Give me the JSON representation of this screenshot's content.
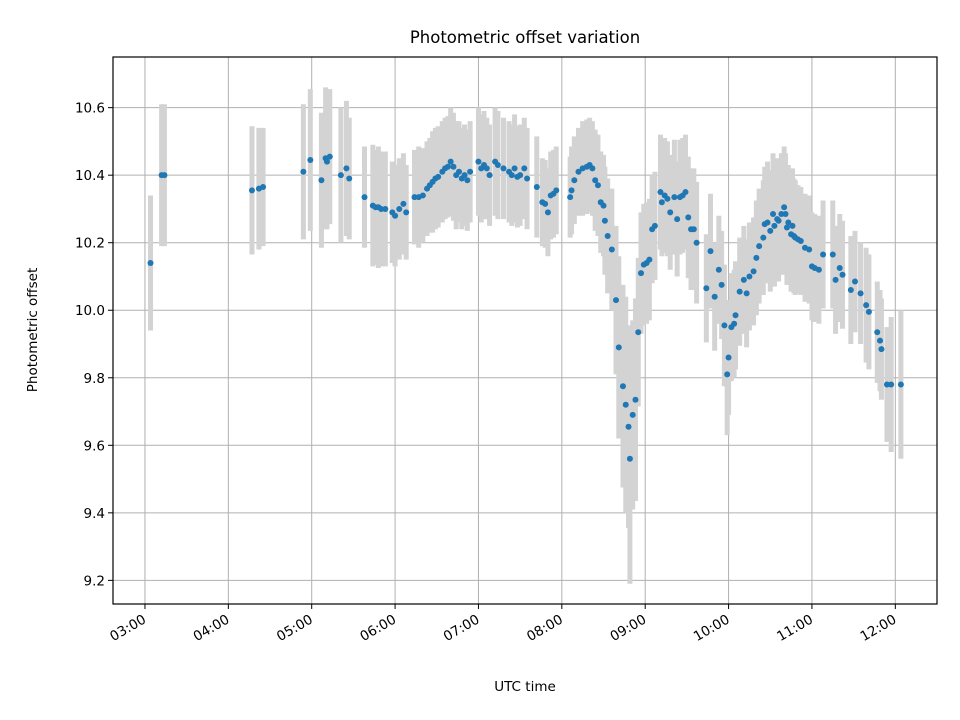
{
  "chart_data": {
    "type": "scatter",
    "title": "Photometric offset variation",
    "xlabel": "UTC time",
    "ylabel": "Photometric offset",
    "x_ticks": [
      "03:00",
      "04:00",
      "05:00",
      "06:00",
      "07:00",
      "08:00",
      "09:00",
      "10:00",
      "11:00",
      "12:00"
    ],
    "y_ticks": [
      "9.2",
      "9.4",
      "9.6",
      "9.8",
      "10.0",
      "10.2",
      "10.4",
      "10.6"
    ],
    "x_range": [
      "02:37",
      "12:30"
    ],
    "ylim": [
      9.13,
      10.75
    ],
    "grid": true,
    "colors": {
      "points": "#1f77b4",
      "error_bars": "#d3d3d3",
      "grid": "#b0b0b0",
      "frame": "#000000"
    },
    "series": [
      {
        "points": [
          [
            "03:04",
            10.14,
            0.2
          ],
          [
            "03:12",
            10.4,
            0.21
          ],
          [
            "03:14",
            10.4,
            0.21
          ],
          [
            "04:17",
            10.355,
            0.19
          ],
          [
            "04:22",
            10.36,
            0.18
          ],
          [
            "04:25",
            10.365,
            0.175
          ],
          [
            "04:54",
            10.41,
            0.2
          ],
          [
            "04:59",
            10.445,
            0.21
          ],
          [
            "05:07",
            10.385,
            0.2
          ],
          [
            "05:10",
            10.45,
            0.21
          ],
          [
            "05:11",
            10.44,
            0.2
          ],
          [
            "05:13",
            10.455,
            0.2
          ],
          [
            "05:21",
            10.4,
            0.2
          ],
          [
            "05:25",
            10.42,
            0.2
          ],
          [
            "05:27",
            10.39,
            0.18
          ],
          [
            "05:38",
            10.335,
            0.15
          ],
          [
            "05:44",
            10.31,
            0.18
          ],
          [
            "05:46",
            10.305,
            0.17
          ],
          [
            "05:48",
            10.305,
            0.18
          ],
          [
            "05:50",
            10.3,
            0.17
          ],
          [
            "05:53",
            10.3,
            0.17
          ],
          [
            "05:58",
            10.29,
            0.15
          ],
          [
            "06:00",
            10.28,
            0.15
          ],
          [
            "06:03",
            10.3,
            0.15
          ],
          [
            "06:06",
            10.315,
            0.15
          ],
          [
            "06:08",
            10.29,
            0.14
          ],
          [
            "06:14",
            10.335,
            0.14
          ],
          [
            "06:17",
            10.335,
            0.15
          ],
          [
            "06:20",
            10.34,
            0.14
          ],
          [
            "06:23",
            10.36,
            0.14
          ],
          [
            "06:25",
            10.37,
            0.14
          ],
          [
            "06:27",
            10.38,
            0.15
          ],
          [
            "06:29",
            10.39,
            0.15
          ],
          [
            "06:31",
            10.395,
            0.15
          ],
          [
            "06:34",
            10.41,
            0.15
          ],
          [
            "06:36",
            10.42,
            0.15
          ],
          [
            "06:38",
            10.425,
            0.15
          ],
          [
            "06:40",
            10.44,
            0.16
          ],
          [
            "06:42",
            10.425,
            0.16
          ],
          [
            "06:44",
            10.4,
            0.16
          ],
          [
            "06:46",
            10.41,
            0.15
          ],
          [
            "06:48",
            10.39,
            0.15
          ],
          [
            "06:50",
            10.4,
            0.15
          ],
          [
            "06:52",
            10.385,
            0.15
          ],
          [
            "06:54",
            10.41,
            0.15
          ],
          [
            "07:00",
            10.44,
            0.16
          ],
          [
            "07:02",
            10.42,
            0.16
          ],
          [
            "07:04",
            10.43,
            0.16
          ],
          [
            "07:06",
            10.42,
            0.15
          ],
          [
            "07:08",
            10.4,
            0.15
          ],
          [
            "07:12",
            10.44,
            0.16
          ],
          [
            "07:14",
            10.43,
            0.16
          ],
          [
            "07:18",
            10.42,
            0.15
          ],
          [
            "07:22",
            10.41,
            0.15
          ],
          [
            "07:24",
            10.4,
            0.15
          ],
          [
            "07:26",
            10.42,
            0.16
          ],
          [
            "07:28",
            10.395,
            0.15
          ],
          [
            "07:30",
            10.4,
            0.15
          ],
          [
            "07:33",
            10.42,
            0.15
          ],
          [
            "07:35",
            10.39,
            0.15
          ],
          [
            "07:42",
            10.365,
            0.15
          ],
          [
            "07:46",
            10.32,
            0.13
          ],
          [
            "07:48",
            10.315,
            0.13
          ],
          [
            "07:50",
            10.29,
            0.13
          ],
          [
            "07:52",
            10.34,
            0.13
          ],
          [
            "07:54",
            10.345,
            0.13
          ],
          [
            "07:56",
            10.355,
            0.13
          ],
          [
            "08:06",
            10.335,
            0.12
          ],
          [
            "08:07",
            10.355,
            0.13
          ],
          [
            "08:09",
            10.385,
            0.13
          ],
          [
            "08:12",
            10.41,
            0.13
          ],
          [
            "08:15",
            10.42,
            0.14
          ],
          [
            "08:18",
            10.425,
            0.14
          ],
          [
            "08:20",
            10.43,
            0.14
          ],
          [
            "08:22",
            10.42,
            0.14
          ],
          [
            "08:24",
            10.385,
            0.15
          ],
          [
            "08:26",
            10.37,
            0.15
          ],
          [
            "08:28",
            10.32,
            0.15
          ],
          [
            "08:30",
            10.31,
            0.15
          ],
          [
            "08:31",
            10.265,
            0.16
          ],
          [
            "08:33",
            10.22,
            0.17
          ],
          [
            "08:36",
            10.18,
            0.18
          ],
          [
            "08:39",
            10.03,
            0.22
          ],
          [
            "08:41",
            9.89,
            0.27
          ],
          [
            "08:44",
            9.775,
            0.3
          ],
          [
            "08:46",
            9.72,
            0.32
          ],
          [
            "08:48",
            9.655,
            0.3
          ],
          [
            "08:49",
            9.56,
            0.37
          ],
          [
            "08:51",
            9.69,
            0.28
          ],
          [
            "08:53",
            9.735,
            0.3
          ],
          [
            "08:55",
            9.935,
            0.22
          ],
          [
            "08:57",
            10.11,
            0.18
          ],
          [
            "08:59",
            10.135,
            0.18
          ],
          [
            "09:01",
            10.14,
            0.18
          ],
          [
            "09:03",
            10.15,
            0.18
          ],
          [
            "09:05",
            10.24,
            0.16
          ],
          [
            "09:07",
            10.25,
            0.16
          ],
          [
            "09:11",
            10.35,
            0.17
          ],
          [
            "09:12",
            10.32,
            0.16
          ],
          [
            "09:14",
            10.34,
            0.17
          ],
          [
            "09:16",
            10.33,
            0.17
          ],
          [
            "09:18",
            10.29,
            0.17
          ],
          [
            "09:21",
            10.335,
            0.17
          ],
          [
            "09:23",
            10.27,
            0.17
          ],
          [
            "09:25",
            10.335,
            0.17
          ],
          [
            "09:27",
            10.34,
            0.17
          ],
          [
            "09:29",
            10.35,
            0.17
          ],
          [
            "09:31",
            10.275,
            0.18
          ],
          [
            "09:33",
            10.24,
            0.18
          ],
          [
            "09:35",
            10.24,
            0.18
          ],
          [
            "09:37",
            10.2,
            0.18
          ],
          [
            "09:44",
            10.065,
            0.16
          ],
          [
            "09:47",
            10.175,
            0.17
          ],
          [
            "09:50",
            10.04,
            0.16
          ],
          [
            "09:53",
            10.12,
            0.16
          ],
          [
            "09:55",
            10.075,
            0.16
          ],
          [
            "09:57",
            9.955,
            0.18
          ],
          [
            "09:59",
            9.81,
            0.18
          ],
          [
            "10:00",
            9.86,
            0.17
          ],
          [
            "10:02",
            9.95,
            0.16
          ],
          [
            "10:04",
            9.96,
            0.16
          ],
          [
            "10:05",
            9.985,
            0.16
          ],
          [
            "10:08",
            10.055,
            0.16
          ],
          [
            "10:11",
            10.09,
            0.16
          ],
          [
            "10:13",
            10.05,
            0.16
          ],
          [
            "10:15",
            10.1,
            0.16
          ],
          [
            "10:18",
            10.115,
            0.16
          ],
          [
            "10:20",
            10.155,
            0.17
          ],
          [
            "10:22",
            10.19,
            0.17
          ],
          [
            "10:25",
            10.215,
            0.17
          ],
          [
            "10:26",
            10.255,
            0.17
          ],
          [
            "10:28",
            10.26,
            0.18
          ],
          [
            "10:30",
            10.235,
            0.18
          ],
          [
            "10:32",
            10.285,
            0.18
          ],
          [
            "10:33",
            10.25,
            0.18
          ],
          [
            "10:35",
            10.27,
            0.18
          ],
          [
            "10:36",
            10.265,
            0.18
          ],
          [
            "10:38",
            10.285,
            0.18
          ],
          [
            "10:40",
            10.305,
            0.18
          ],
          [
            "10:41",
            10.285,
            0.18
          ],
          [
            "10:42",
            10.245,
            0.17
          ],
          [
            "10:43",
            10.26,
            0.17
          ],
          [
            "10:45",
            10.225,
            0.17
          ],
          [
            "10:46",
            10.25,
            0.17
          ],
          [
            "10:47",
            10.22,
            0.17
          ],
          [
            "10:48",
            10.215,
            0.17
          ],
          [
            "10:50",
            10.21,
            0.16
          ],
          [
            "10:52",
            10.205,
            0.16
          ],
          [
            "10:55",
            10.185,
            0.16
          ],
          [
            "10:58",
            10.18,
            0.16
          ],
          [
            "11:00",
            10.13,
            0.16
          ],
          [
            "11:02",
            10.125,
            0.16
          ],
          [
            "11:05",
            10.12,
            0.16
          ],
          [
            "11:08",
            10.165,
            0.16
          ],
          [
            "11:15",
            10.165,
            0.16
          ],
          [
            "11:17",
            10.09,
            0.16
          ],
          [
            "11:20",
            10.125,
            0.16
          ],
          [
            "11:22",
            10.105,
            0.16
          ],
          [
            "11:28",
            10.06,
            0.16
          ],
          [
            "11:31",
            10.085,
            0.15
          ],
          [
            "11:35",
            10.05,
            0.15
          ],
          [
            "11:39",
            10.015,
            0.17
          ],
          [
            "11:41",
            9.995,
            0.17
          ],
          [
            "11:47",
            9.935,
            0.15
          ],
          [
            "11:49",
            9.91,
            0.15
          ],
          [
            "11:50",
            9.885,
            0.15
          ],
          [
            "11:54",
            9.78,
            0.17
          ],
          [
            "11:57",
            9.78,
            0.2
          ],
          [
            "12:04",
            9.78,
            0.22
          ]
        ]
      }
    ]
  }
}
